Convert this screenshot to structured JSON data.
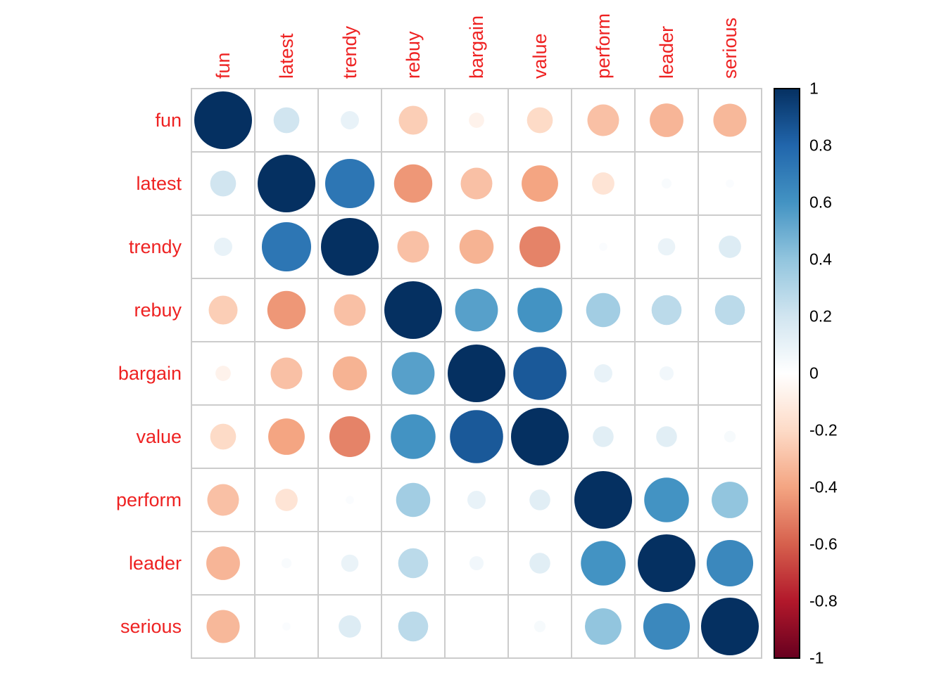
{
  "chart_data": {
    "type": "heatmap",
    "subtype": "correlation-circle-matrix",
    "title": "",
    "variables": [
      "fun",
      "latest",
      "trendy",
      "rebuy",
      "bargain",
      "value",
      "perform",
      "leader",
      "serious"
    ],
    "matrix": [
      [
        1.0,
        0.2,
        0.1,
        -0.25,
        -0.07,
        -0.2,
        -0.3,
        -0.34,
        -0.33
      ],
      [
        0.2,
        1.0,
        0.73,
        -0.44,
        -0.3,
        -0.4,
        -0.15,
        0.03,
        0.02
      ],
      [
        0.1,
        0.73,
        1.0,
        -0.3,
        -0.35,
        -0.5,
        0.02,
        0.09,
        0.15
      ],
      [
        -0.25,
        -0.44,
        -0.3,
        1.0,
        0.55,
        0.6,
        0.35,
        0.27,
        0.27
      ],
      [
        -0.07,
        -0.3,
        -0.35,
        0.55,
        1.0,
        0.85,
        0.1,
        0.06,
        0.0
      ],
      [
        -0.2,
        -0.4,
        -0.5,
        0.6,
        0.85,
        1.0,
        0.13,
        0.13,
        0.04
      ],
      [
        -0.3,
        -0.15,
        0.02,
        0.35,
        0.1,
        0.13,
        1.0,
        0.6,
        0.4
      ],
      [
        -0.34,
        0.03,
        0.09,
        0.27,
        0.06,
        0.13,
        0.6,
        1.0,
        0.65
      ],
      [
        -0.33,
        0.02,
        0.15,
        0.27,
        0.0,
        0.04,
        0.4,
        0.65,
        1.0
      ]
    ],
    "colorbar": {
      "min": -1,
      "max": 1,
      "ticks": [
        "1",
        "0.8",
        "0.6",
        "0.4",
        "0.2",
        "0",
        "-0.2",
        "-0.4",
        "-0.6",
        "-0.8",
        "-1"
      ]
    },
    "palette": {
      "stops": [
        {
          "v": -1.0,
          "color": "#67001F"
        },
        {
          "v": -0.8,
          "color": "#B2182B"
        },
        {
          "v": -0.6,
          "color": "#D6604D"
        },
        {
          "v": -0.4,
          "color": "#F4A582"
        },
        {
          "v": -0.2,
          "color": "#FDDBC7"
        },
        {
          "v": 0.0,
          "color": "#FFFFFF"
        },
        {
          "v": 0.2,
          "color": "#D1E5F0"
        },
        {
          "v": 0.4,
          "color": "#92C5DE"
        },
        {
          "v": 0.6,
          "color": "#4393C3"
        },
        {
          "v": 0.8,
          "color": "#2166AC"
        },
        {
          "v": 1.0,
          "color": "#053061"
        }
      ]
    },
    "label_color": "#EE2222",
    "tick_label_color": "#000000",
    "grid_color": "#CCCCCC",
    "colorbar_border_color": "#000000",
    "legend_position": "right",
    "grid": true
  }
}
